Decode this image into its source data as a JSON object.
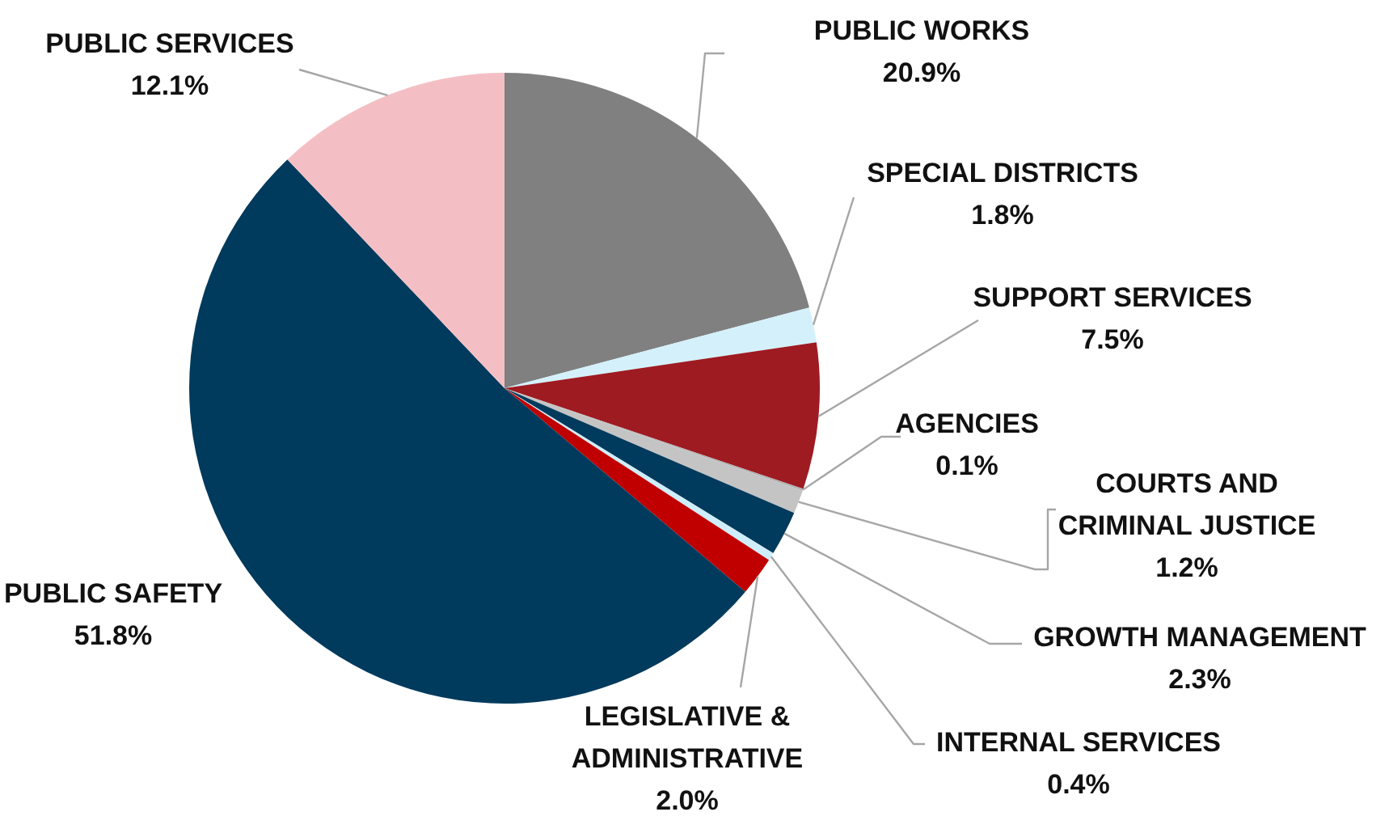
{
  "chart_data": {
    "type": "pie",
    "categories": [
      "PUBLIC WORKS",
      "SPECIAL DISTRICTS",
      "SUPPORT SERVICES",
      "AGENCIES",
      "COURTS AND CRIMINAL JUSTICE",
      "GROWTH MANAGEMENT",
      "INTERNAL SERVICES",
      "LEGISLATIVE & ADMINISTRATIVE",
      "PUBLIC SAFETY",
      "PUBLIC SERVICES"
    ],
    "values": [
      20.9,
      1.8,
      7.5,
      0.1,
      1.2,
      2.3,
      0.4,
      2.0,
      51.8,
      12.1
    ],
    "colors": [
      "#808080",
      "#d4f1fb",
      "#9e1b22",
      "#b0b0b0",
      "#c4c4c4",
      "#003a5c",
      "#cdeefa",
      "#c00000",
      "#003a5c",
      "#f4bfc4"
    ],
    "value_labels": [
      "20.9%",
      "1.8%",
      "7.5%",
      "0.1%",
      "1.2%",
      "2.3%",
      "0.4%",
      "2.0%",
      "51.8%",
      "12.1%"
    ]
  }
}
